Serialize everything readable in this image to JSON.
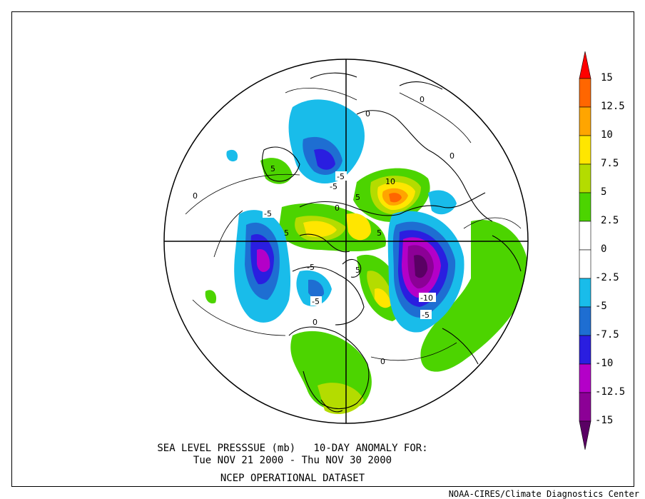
{
  "title": {
    "line1": "SEA LEVEL PRESSSUE (mb)   10-DAY ANOMALY FOR:",
    "line2": "Tue NOV 21 2000 - Thu NOV 30 2000",
    "line3": "NCEP OPERATIONAL DATASET"
  },
  "credit": "NOAA-CIRES/Climate Diagnostics Center",
  "legend": {
    "bins": [
      {
        "label": "15",
        "color": "#ff0000"
      },
      {
        "label": "12.5",
        "color": "#ff6600"
      },
      {
        "label": "10",
        "color": "#ffa500"
      },
      {
        "label": "7.5",
        "color": "#ffe600"
      },
      {
        "label": "5",
        "color": "#b4dc00"
      },
      {
        "label": "2.5",
        "color": "#4cd400"
      },
      {
        "label": "0",
        "color": "#ffffff"
      },
      {
        "label": "-2.5",
        "color": "#ffffff"
      },
      {
        "label": "-5",
        "color": "#19bcea"
      },
      {
        "label": "-7.5",
        "color": "#1e6ed2"
      },
      {
        "label": "-10",
        "color": "#2a1ee0"
      },
      {
        "label": "-12.5",
        "color": "#b400c8"
      },
      {
        "label": "-15",
        "color": "#8c0096"
      }
    ],
    "top_arrow_color": "#ff0000",
    "bottom_arrow_color": "#5a0064"
  },
  "contour_labels": [
    "0",
    "0",
    "0",
    "0",
    "0",
    "0",
    "-5",
    "-5",
    "-5",
    "-5",
    "-5",
    "5",
    "5",
    "5",
    "5",
    "5",
    "10",
    "-10",
    "-5",
    "0"
  ]
}
